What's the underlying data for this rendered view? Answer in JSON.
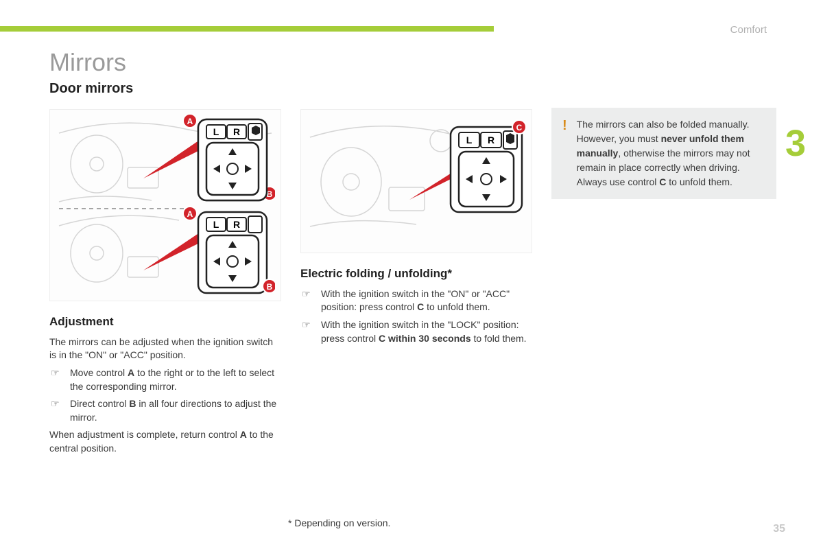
{
  "colors": {
    "accent": "#a5cd39",
    "bar_grey": "#d9d9d9",
    "header_grey": "#b0b0b0",
    "pagenum_grey": "#c8c8c8",
    "warning_bg": "#eceded",
    "warning_mark": "#d88a18",
    "marker_red": "#d2232a",
    "text": "#3a3a3a"
  },
  "layout": {
    "bar_accent_pct": 60,
    "bar_grey_pct": 0
  },
  "header": {
    "section_label": "Comfort",
    "section_number": "3",
    "page_number": "35"
  },
  "title": "Mirrors",
  "subtitle": "Door mirrors",
  "adjustment": {
    "heading": "Adjustment",
    "intro": "The mirrors can be adjusted when the ignition switch is in the \"ON\" or \"ACC\" position.",
    "items": [
      {
        "pre": "Move control ",
        "bold": "A",
        "post": " to the right or to the left to select the corresponding mirror."
      },
      {
        "pre": "Direct control ",
        "bold": "B",
        "post": " in all four directions to adjust the mirror."
      }
    ],
    "outro_pre": "When adjustment is complete, return control ",
    "outro_bold": "A",
    "outro_post": " to the central position."
  },
  "folding": {
    "heading": "Electric folding / unfolding*",
    "items": [
      {
        "pre": "With the ignition switch in the \"ON\" or \"ACC\" position: press control ",
        "bold": "C",
        "post": " to unfold them."
      },
      {
        "pre": "With the ignition switch in the \"LOCK\" position: press control ",
        "bold1": "C within 30 seconds",
        "post": " to fold them."
      }
    ]
  },
  "warning": {
    "line1": "The mirrors can also be folded manually.",
    "line2_pre": "However, you must ",
    "line2_bold": "never unfold them manually",
    "line2_post": ", otherwise the mirrors may not remain in place correctly when driving.",
    "line3_pre": "Always use control ",
    "line3_bold": "C",
    "line3_post": " to unfold them."
  },
  "footnote": "* Depending on version.",
  "diagram": {
    "L": "L",
    "R": "R",
    "A": "A",
    "B": "B",
    "C": "C"
  }
}
